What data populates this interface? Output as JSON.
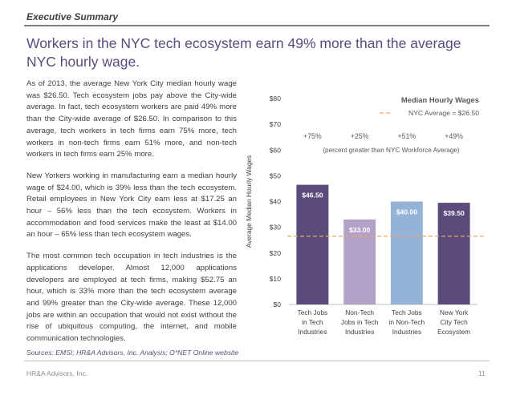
{
  "header": {
    "section_label": "Executive Summary"
  },
  "title": "Workers in the NYC tech ecosystem earn 49% more than the average NYC hourly wage.",
  "body": {
    "paragraphs": [
      "As of 2013, the average New York City median hourly wage was $26.50. Tech ecosystem jobs pay above the City-wide average. In fact, tech ecosystem workers are paid 49% more than the City-wide average of $26.50. In comparison to this average, tech workers in tech firms earn 75% more, tech workers in non-tech firms earn 51% more, and non-tech workers in tech firms earn 25% more.",
      "New Yorkers working in manufacturing earn a median hourly wage of $24.00, which is 39% less than the tech ecosystem. Retail employees in New York City earn less at $17.25 an hour – 56% less than the tech ecosystem. Workers in accommodation and food services make the least at $14.00 an hour – 65% less than tech ecosystem wages.",
      "The most common tech occupation in tech industries is the applications developer. Almost 12,000 applications developers are employed at tech firms, making $52.75 an hour, which is 33% more than the tech ecosystem average and 99% greater than the City-wide average. These 12,000 jobs are within an occupation that would not exist without the rise of ubiquitous computing, the internet, and mobile communication technologies."
    ],
    "sources": "Sources: EMSI; HR&A Advisors, Inc. Analysis; O*NET Online website"
  },
  "footer": {
    "company": "HR&A Advisors, Inc.",
    "page_number": "11"
  },
  "chart_data": {
    "type": "bar",
    "title": "Median Hourly Wages",
    "ylabel": "Average Median Hourly Wages",
    "ylim": [
      0,
      80
    ],
    "y_ticks": [
      "$0",
      "$10",
      "$20",
      "$30",
      "$40",
      "$50",
      "$60",
      "$70",
      "$80"
    ],
    "categories": [
      [
        "Tech Jobs",
        "in Tech",
        "Industries"
      ],
      [
        "Non-Tech",
        "Jobs in Tech",
        "Industries"
      ],
      [
        "Tech Jobs",
        "in Non-Tech",
        "Industries"
      ],
      [
        "New York",
        "City Tech",
        "Ecosystem"
      ]
    ],
    "values": [
      46.5,
      33.0,
      40.0,
      39.5
    ],
    "value_labels": [
      "$46.50",
      "$33.00",
      "$40.00",
      "$39.50"
    ],
    "bar_colors": [
      "#5b4a7c",
      "#b3a2c7",
      "#95b3d7",
      "#5b4a7c"
    ],
    "value_label_colors": [
      "#5b4a7c",
      "#b3a2c7",
      "#95b3d7",
      "#5b4a7c"
    ],
    "percent_labels": [
      "+75%",
      "+25%",
      "+51%",
      "+49%"
    ],
    "annotation": "(percent greater than NYC Workforce Average)",
    "reference_line": {
      "value": 26.5,
      "label": "NYC Average = $26.50",
      "color": "#f4a460"
    },
    "legend_position": "top-right",
    "grid": false
  }
}
